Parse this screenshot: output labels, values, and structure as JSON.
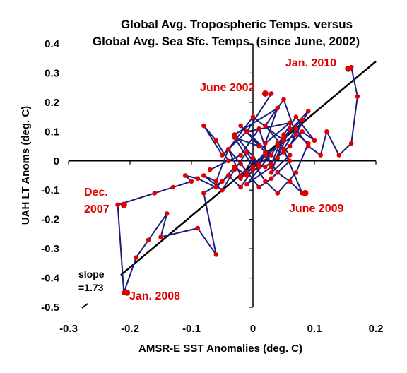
{
  "chart_data": {
    "type": "scatter",
    "title_lines": [
      "Global Avg. Tropospheric Temps. versus",
      "Global Avg. Sea Sfc. Temps. (since June, 2002)"
    ],
    "xlabel": "AMSR-E SST Anomalies (deg. C)",
    "ylabel": "UAH LT Anoms (deg. C)",
    "xlim": [
      -0.3,
      0.2
    ],
    "ylim": [
      -0.5,
      0.4
    ],
    "xticks": [
      -0.3,
      -0.2,
      -0.1,
      0,
      0.1,
      0.2
    ],
    "xtick_labels": [
      "-0.3",
      "-0.2",
      "-0.1",
      "0",
      "0.1",
      "0.2"
    ],
    "yticks": [
      -0.5,
      -0.4,
      -0.3,
      -0.2,
      -0.1,
      0,
      0.1,
      0.2,
      0.3,
      0.4
    ],
    "ytick_labels": [
      "-0.5",
      "-0.4",
      "-0.3",
      "-0.2",
      "-0.1",
      "0",
      "0.1",
      "0.2",
      "0.3",
      "0.4"
    ],
    "grid": false,
    "legend": "none",
    "series": [
      {
        "connected": true,
        "x": [
          0.03,
          -0.01,
          0.01,
          -0.03,
          0.0,
          0.02,
          -0.02,
          0.03,
          -0.01,
          0.05,
          0.0,
          -0.04,
          -0.02,
          0.01,
          -0.03,
          0.04,
          0.02,
          0.06,
          -0.01,
          -0.05,
          -0.08,
          -0.06,
          -0.04,
          -0.07,
          -0.02,
          0.01,
          0.03,
          -0.01,
          0.04,
          0.07,
          0.05,
          0.02,
          0.06,
          0.03,
          0.05,
          0.08,
          0.06,
          0.09,
          0.04,
          0.06,
          0.03,
          0.01,
          -0.02,
          -0.04,
          -0.06,
          -0.08,
          -0.05,
          -0.03,
          -0.01,
          0.02,
          0.04,
          0.07,
          0.09,
          0.06,
          0.04,
          0.02,
          0.05,
          0.08,
          0.1,
          0.07,
          0.05,
          0.03,
          0.0,
          -0.02,
          -0.04,
          -0.06,
          -0.09,
          -0.11,
          -0.1,
          -0.13,
          -0.16,
          -0.22,
          -0.21,
          -0.19,
          -0.17,
          -0.14,
          -0.15,
          -0.09,
          -0.06,
          -0.08,
          -0.05,
          -0.03,
          -0.01,
          0.01,
          0.0,
          -0.02,
          0.02,
          0.04,
          0.06,
          0.08,
          0.05,
          0.07,
          0.09,
          0.11,
          0.12,
          0.14,
          0.16,
          0.17,
          0.16
        ],
        "y": [
          0.23,
          0.1,
          0.05,
          0.08,
          -0.02,
          0.03,
          0.12,
          0.02,
          -0.04,
          0.07,
          0.15,
          0.04,
          -0.05,
          -0.01,
          0.09,
          0.18,
          0.06,
          0.13,
          0.1,
          0.02,
          0.12,
          0.07,
          0.0,
          -0.03,
          0.02,
          0.11,
          -0.02,
          -0.08,
          0.05,
          0.09,
          0.21,
          0.12,
          0.02,
          -0.04,
          0.08,
          0.14,
          0.05,
          0.17,
          0.06,
          0.0,
          -0.06,
          -0.09,
          -0.01,
          0.04,
          -0.07,
          -0.05,
          -0.1,
          -0.03,
          0.03,
          -0.07,
          -0.11,
          -0.04,
          0.06,
          0.11,
          0.01,
          -0.02,
          0.03,
          0.1,
          0.07,
          0.15,
          0.09,
          -0.01,
          -0.03,
          -0.09,
          -0.05,
          -0.09,
          -0.06,
          -0.05,
          -0.07,
          -0.09,
          -0.11,
          -0.15,
          -0.45,
          -0.33,
          -0.27,
          -0.18,
          -0.26,
          -0.23,
          -0.32,
          -0.11,
          -0.07,
          -0.02,
          -0.05,
          -0.02,
          0.01,
          -0.06,
          0.02,
          -0.04,
          -0.07,
          -0.11,
          0.04,
          0.11,
          0.05,
          0.02,
          0.1,
          0.02,
          0.06,
          0.22,
          0.32
        ]
      }
    ],
    "highlight_points": [
      {
        "x": 0.02,
        "y": 0.23
      },
      {
        "x": -0.21,
        "y": -0.15
      },
      {
        "x": -0.205,
        "y": -0.45
      },
      {
        "x": 0.085,
        "y": -0.11
      },
      {
        "x": 0.155,
        "y": 0.315
      }
    ],
    "trend_line": {
      "x": [
        -0.215,
        0.2
      ],
      "y": [
        -0.39,
        0.34
      ],
      "slope": 1.73
    },
    "annotations": [
      {
        "text": "June 2002",
        "color": "#e00000"
      },
      {
        "text": "Dec.",
        "color": "#e00000"
      },
      {
        "text": "2007",
        "color": "#e00000"
      },
      {
        "text": "Jan. 2008",
        "color": "#e00000"
      },
      {
        "text": "June 2009",
        "color": "#e00000"
      },
      {
        "text": "Jan. 2010",
        "color": "#e00000"
      },
      {
        "text": "slope",
        "color": "#000000"
      },
      {
        "text": "=1.73",
        "color": "#000000"
      }
    ],
    "colors": {
      "line": "#1a1f7a",
      "marker": "#e00000",
      "trend": "#000000",
      "axis": "#000000"
    }
  }
}
